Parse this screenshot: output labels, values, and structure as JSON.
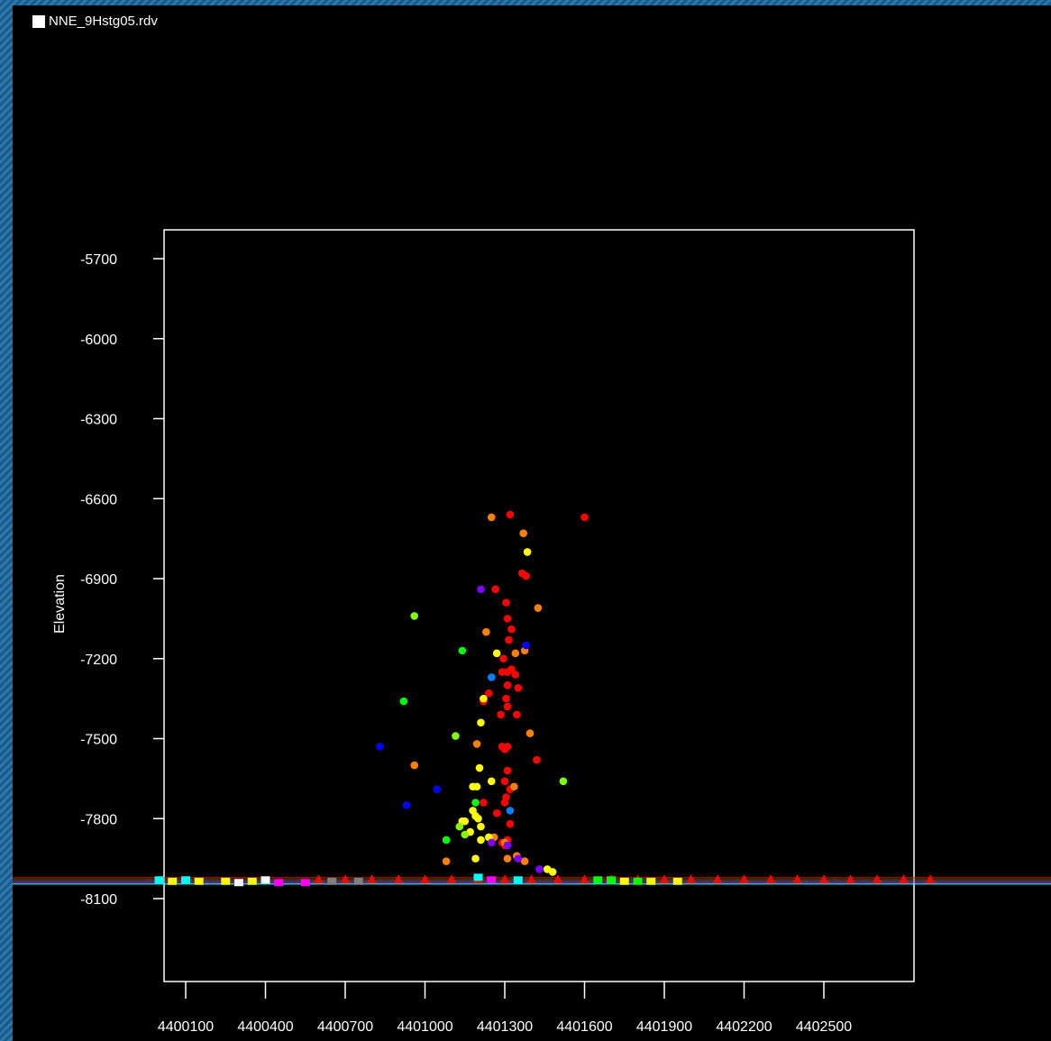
{
  "window": {
    "title": "NNE_9Hstg05.rdv"
  },
  "icons": {
    "title": "window-square-icon"
  },
  "colors": {
    "background": "#000000",
    "frame": "#ffffff",
    "text": "#ffffff",
    "desktop": "#1d5f8c"
  },
  "chart_data": {
    "type": "scatter",
    "title": "",
    "xlabel": "",
    "ylabel": "Elevation",
    "xlim": [
      4399990,
      4402930
    ],
    "ylim": [
      -8420,
      -5590
    ],
    "x_ticks": [
      4400100,
      4400400,
      4400700,
      4401000,
      4401300,
      4401600,
      4401900,
      4402200,
      4402500
    ],
    "y_ticks": [
      -5700,
      -6000,
      -6300,
      -6600,
      -6900,
      -7200,
      -7500,
      -7800,
      -8100
    ],
    "grid": false,
    "series": [
      {
        "color": "#ff0000",
        "marker": "circle",
        "points": [
          [
            4401320,
            -6660
          ],
          [
            4401600,
            -6670
          ],
          [
            4401365,
            -6880
          ],
          [
            4401380,
            -6890
          ],
          [
            4401265,
            -6940
          ],
          [
            4401305,
            -6990
          ],
          [
            4401310,
            -7050
          ],
          [
            4401325,
            -7090
          ],
          [
            4401315,
            -7130
          ],
          [
            4401295,
            -7200
          ],
          [
            4401290,
            -7250
          ],
          [
            4401310,
            -7250
          ],
          [
            4401325,
            -7240
          ],
          [
            4401340,
            -7260
          ],
          [
            4401310,
            -7300
          ],
          [
            4401350,
            -7310
          ],
          [
            4401240,
            -7330
          ],
          [
            4401220,
            -7360
          ],
          [
            4401305,
            -7350
          ],
          [
            4401310,
            -7380
          ],
          [
            4401345,
            -7410
          ],
          [
            4401285,
            -7410
          ],
          [
            4401290,
            -7530
          ],
          [
            4401300,
            -7540
          ],
          [
            4401310,
            -7530
          ],
          [
            4401420,
            -7580
          ],
          [
            4401310,
            -7620
          ],
          [
            4401300,
            -7660
          ],
          [
            4401320,
            -7690
          ],
          [
            4401305,
            -7720
          ],
          [
            4401300,
            -7740
          ],
          [
            4401220,
            -7740
          ],
          [
            4401270,
            -7780
          ],
          [
            4401320,
            -7820
          ],
          [
            4401310,
            -7880
          ],
          [
            4401290,
            -7890
          ],
          [
            4401300,
            -7900
          ]
        ]
      },
      {
        "color": "#ff7f00",
        "marker": "circle",
        "points": [
          [
            4401250,
            -6670
          ],
          [
            4401370,
            -6730
          ],
          [
            4401425,
            -7010
          ],
          [
            4401230,
            -7100
          ],
          [
            4401340,
            -7180
          ],
          [
            4401375,
            -7170
          ],
          [
            4401395,
            -7480
          ],
          [
            4401195,
            -7520
          ],
          [
            4400960,
            -7600
          ],
          [
            4401335,
            -7680
          ],
          [
            4401260,
            -7870
          ],
          [
            4401300,
            -7890
          ],
          [
            4401345,
            -7940
          ],
          [
            4401375,
            -7960
          ],
          [
            4401080,
            -7960
          ],
          [
            4401310,
            -7950
          ]
        ]
      },
      {
        "color": "#ffff00",
        "marker": "circle",
        "points": [
          [
            4401385,
            -6800
          ],
          [
            4401270,
            -7180
          ],
          [
            4401220,
            -7350
          ],
          [
            4401210,
            -7440
          ],
          [
            4401205,
            -7610
          ],
          [
            4401250,
            -7660
          ],
          [
            4401195,
            -7680
          ],
          [
            4401180,
            -7680
          ],
          [
            4401190,
            -7790
          ],
          [
            4401200,
            -7800
          ],
          [
            4401150,
            -7810
          ],
          [
            4401140,
            -7810
          ],
          [
            4401210,
            -7830
          ],
          [
            4401180,
            -7770
          ],
          [
            4401170,
            -7850
          ],
          [
            4401210,
            -7880
          ],
          [
            4401240,
            -7870
          ],
          [
            4401190,
            -7950
          ],
          [
            4401460,
            -7990
          ],
          [
            4401480,
            -8000
          ]
        ]
      },
      {
        "color": "#80ff00",
        "marker": "circle",
        "points": [
          [
            4400960,
            -7040
          ],
          [
            4401520,
            -7660
          ],
          [
            4401115,
            -7490
          ],
          [
            4401130,
            -7830
          ],
          [
            4401150,
            -7860
          ]
        ]
      },
      {
        "color": "#00ff00",
        "marker": "circle",
        "points": [
          [
            4400920,
            -7360
          ],
          [
            4401140,
            -7170
          ],
          [
            4401080,
            -7880
          ],
          [
            4401190,
            -7740
          ]
        ]
      },
      {
        "color": "#0080ff",
        "marker": "circle",
        "points": [
          [
            4401250,
            -7270
          ],
          [
            4401320,
            -7770
          ]
        ]
      },
      {
        "color": "#0000ff",
        "marker": "circle",
        "points": [
          [
            4400830,
            -7530
          ],
          [
            4400930,
            -7750
          ],
          [
            4401045,
            -7690
          ],
          [
            4401380,
            -7150
          ]
        ]
      },
      {
        "color": "#8000ff",
        "marker": "circle",
        "points": [
          [
            4401210,
            -6940
          ],
          [
            4401310,
            -7900
          ],
          [
            4401250,
            -7890
          ],
          [
            4401430,
            -7990
          ],
          [
            4401350,
            -7950
          ]
        ]
      },
      {
        "color": "#ff0000",
        "marker": "triangle",
        "points": [
          [
            4400600,
            -8030
          ],
          [
            4400700,
            -8030
          ],
          [
            4400800,
            -8030
          ],
          [
            4400900,
            -8030
          ],
          [
            4401000,
            -8030
          ],
          [
            4401100,
            -8030
          ],
          [
            4401200,
            -8030
          ],
          [
            4401300,
            -8030
          ],
          [
            4401400,
            -8030
          ],
          [
            4401500,
            -8030
          ],
          [
            4401600,
            -8030
          ],
          [
            4401700,
            -8030
          ],
          [
            4401800,
            -8030
          ],
          [
            4401900,
            -8030
          ],
          [
            4402000,
            -8030
          ],
          [
            4402100,
            -8030
          ],
          [
            4402200,
            -8030
          ],
          [
            4402300,
            -8030
          ],
          [
            4402400,
            -8030
          ],
          [
            4402500,
            -8030
          ],
          [
            4402600,
            -8030
          ],
          [
            4402700,
            -8030
          ],
          [
            4402800,
            -8030
          ],
          [
            4402900,
            -8030
          ]
        ]
      },
      {
        "color": "#ffff00",
        "marker": "square",
        "points": [
          [
            4400050,
            -8035
          ],
          [
            4400150,
            -8035
          ],
          [
            4400250,
            -8035
          ],
          [
            4400350,
            -8035
          ],
          [
            4401750,
            -8035
          ],
          [
            4401850,
            -8035
          ],
          [
            4401950,
            -8035
          ]
        ]
      },
      {
        "color": "#00ffff",
        "marker": "square",
        "points": [
          [
            4400000,
            -8030
          ],
          [
            4400100,
            -8030
          ],
          [
            4401200,
            -8020
          ],
          [
            4401350,
            -8030
          ]
        ]
      },
      {
        "color": "#ff00ff",
        "marker": "square",
        "points": [
          [
            4400450,
            -8040
          ],
          [
            4400550,
            -8040
          ],
          [
            4401250,
            -8030
          ]
        ]
      },
      {
        "color": "#ffffff",
        "marker": "square",
        "points": [
          [
            4400400,
            -8030
          ],
          [
            4400300,
            -8040
          ]
        ]
      },
      {
        "color": "#808080",
        "marker": "square",
        "points": [
          [
            4400650,
            -8035
          ],
          [
            4400750,
            -8035
          ]
        ]
      },
      {
        "color": "#00ff00",
        "marker": "square",
        "points": [
          [
            4401650,
            -8030
          ],
          [
            4401700,
            -8030
          ],
          [
            4401800,
            -8035
          ]
        ]
      }
    ]
  }
}
